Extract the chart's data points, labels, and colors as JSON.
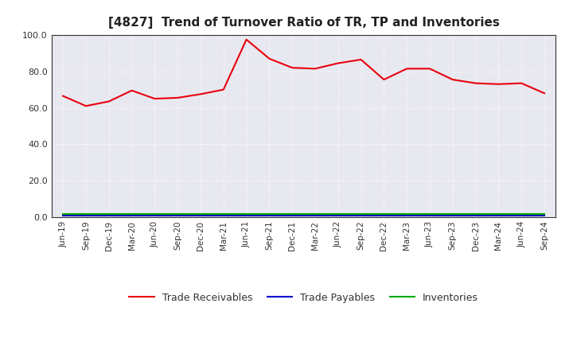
{
  "title": "[4827]  Trend of Turnover Ratio of TR, TP and Inventories",
  "x_labels": [
    "Jun-19",
    "Sep-19",
    "Dec-19",
    "Mar-20",
    "Jun-20",
    "Sep-20",
    "Dec-20",
    "Mar-21",
    "Jun-21",
    "Sep-21",
    "Dec-21",
    "Mar-22",
    "Jun-22",
    "Sep-22",
    "Dec-22",
    "Mar-23",
    "Jun-23",
    "Sep-23",
    "Dec-23",
    "Mar-24",
    "Jun-24",
    "Sep-24"
  ],
  "trade_receivables": [
    66.5,
    61.0,
    63.5,
    69.5,
    65.0,
    65.5,
    67.5,
    70.0,
    97.5,
    87.0,
    82.0,
    81.5,
    84.5,
    86.5,
    75.5,
    81.5,
    81.5,
    75.5,
    73.5,
    73.0,
    73.5,
    68.0
  ],
  "trade_payables": [
    0.8,
    0.8,
    0.8,
    0.8,
    0.8,
    0.8,
    0.8,
    0.8,
    0.8,
    0.8,
    0.8,
    0.8,
    0.8,
    0.8,
    0.8,
    0.8,
    0.8,
    0.8,
    0.8,
    0.8,
    0.8,
    0.8
  ],
  "inventories": [
    1.5,
    1.5,
    1.5,
    1.5,
    1.5,
    1.5,
    1.5,
    1.5,
    1.5,
    1.5,
    1.5,
    1.5,
    1.5,
    1.5,
    1.5,
    1.5,
    1.5,
    1.5,
    1.5,
    1.5,
    1.5,
    1.5
  ],
  "tr_color": "#e8000d",
  "tp_color": "#0000cc",
  "inv_color": "#00aa00",
  "ylim": [
    0,
    100
  ],
  "yticks": [
    0.0,
    20.0,
    40.0,
    60.0,
    80.0,
    100.0
  ],
  "legend_labels": [
    "Trade Receivables",
    "Trade Payables",
    "Inventories"
  ],
  "plot_bg_color": "#e8e8f0",
  "background_color": "#ffffff",
  "grid_color": "#ffffff",
  "spine_color": "#333333"
}
